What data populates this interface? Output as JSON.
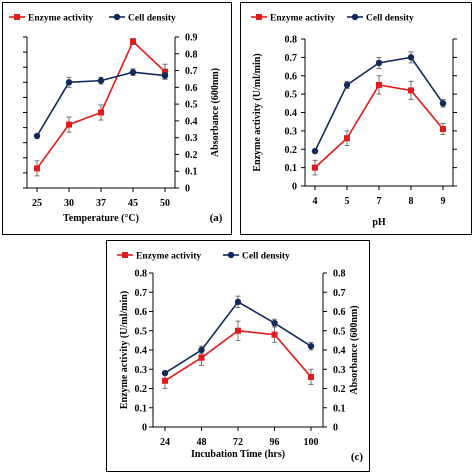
{
  "colors": {
    "enzyme": "#e31a1c",
    "cell": "#102a5c",
    "errorbar": "#555555"
  },
  "chart_data": [
    {
      "id": "a",
      "type": "line",
      "panel_tag": "(a)",
      "xlabel": "Temperature (°C)",
      "ylabel_left": "",
      "ylabel_right": "Absorbance (600nm)",
      "categories": [
        "25",
        "30",
        "37",
        "45",
        "50"
      ],
      "ylim_left": [
        0,
        1.0
      ],
      "ylim_right": [
        0,
        0.9
      ],
      "left_ticks": [],
      "right_ticks": [
        "0",
        "0.1",
        "0.2",
        "0.3",
        "0.4",
        "0.5",
        "0.6",
        "0.7",
        "0.8",
        "0.9"
      ],
      "series": [
        {
          "name": "Enzyme activity",
          "axis": "left",
          "color_key": "enzyme",
          "marker": "square",
          "values": [
            0.13,
            0.42,
            0.5,
            0.97,
            0.77
          ],
          "errors": [
            0.05,
            0.05,
            0.05,
            0.02,
            0.05
          ]
        },
        {
          "name": "Cell density",
          "axis": "right",
          "color_key": "cell",
          "marker": "circle",
          "values": [
            0.31,
            0.63,
            0.64,
            0.69,
            0.67
          ],
          "errors": [
            0.01,
            0.03,
            0.02,
            0.02,
            0.02
          ]
        }
      ]
    },
    {
      "id": "b",
      "type": "line",
      "panel_tag": "",
      "xlabel": "pH",
      "ylabel_left": "Enzyme activity (U/ml/min)",
      "ylabel_right": "",
      "categories": [
        "4",
        "5",
        "7",
        "8",
        "9"
      ],
      "ylim_left": [
        0,
        0.8
      ],
      "ylim_right": [
        0,
        0.8
      ],
      "left_ticks": [
        "0",
        "0.1",
        "0.2",
        "0.3",
        "0.4",
        "0.5",
        "0.6",
        "0.7",
        "0.8"
      ],
      "right_ticks": [],
      "series": [
        {
          "name": "Enzyme activity",
          "axis": "left",
          "color_key": "enzyme",
          "marker": "square",
          "values": [
            0.1,
            0.26,
            0.55,
            0.52,
            0.31
          ],
          "errors": [
            0.04,
            0.04,
            0.05,
            0.05,
            0.03
          ]
        },
        {
          "name": "Cell density",
          "axis": "right",
          "color_key": "cell",
          "marker": "circle",
          "values": [
            0.19,
            0.55,
            0.67,
            0.7,
            0.45
          ],
          "errors": [
            0.01,
            0.02,
            0.03,
            0.03,
            0.02
          ]
        }
      ]
    },
    {
      "id": "c",
      "type": "line",
      "panel_tag": "(c)",
      "xlabel": "Incubation Time (hrs)",
      "ylabel_left": "Enzyme activity (U/ml/min)",
      "ylabel_right": "Absorbance (600nm)",
      "categories": [
        "24",
        "48",
        "72",
        "96",
        "100"
      ],
      "ylim_left": [
        0,
        0.8
      ],
      "ylim_right": [
        0,
        0.8
      ],
      "left_ticks": [
        "0",
        "0.1",
        "0.2",
        "0.3",
        "0.4",
        "0.5",
        "0.6",
        "0.7",
        "0.8"
      ],
      "right_ticks": [
        "0",
        "0.1",
        "0.2",
        "0.3",
        "0.4",
        "0.5",
        "0.6",
        "0.7",
        "0.8"
      ],
      "series": [
        {
          "name": "Enzyme activity",
          "axis": "left",
          "color_key": "enzyme",
          "marker": "square",
          "values": [
            0.24,
            0.36,
            0.5,
            0.48,
            0.26
          ],
          "errors": [
            0.04,
            0.04,
            0.05,
            0.04,
            0.04
          ]
        },
        {
          "name": "Cell density",
          "axis": "right",
          "color_key": "cell",
          "marker": "circle",
          "values": [
            0.28,
            0.4,
            0.65,
            0.54,
            0.42
          ],
          "errors": [
            0.01,
            0.02,
            0.03,
            0.02,
            0.02
          ]
        }
      ]
    }
  ]
}
